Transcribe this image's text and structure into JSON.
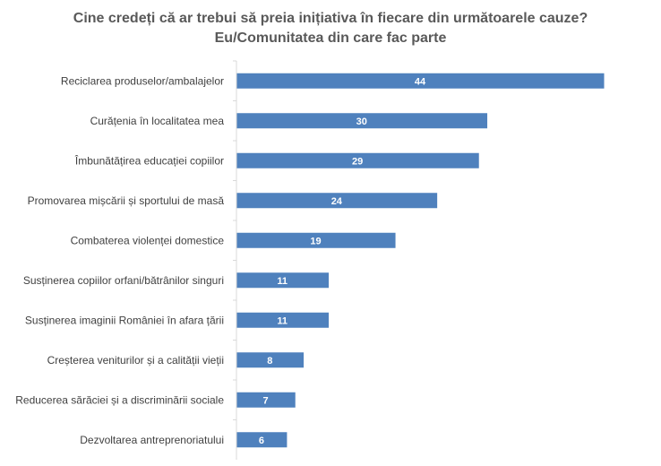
{
  "chart_data": {
    "type": "bar",
    "orientation": "horizontal",
    "title": "Cine credeți că ar trebui să preia inițiativa în fiecare din următoarele cauze?",
    "subtitle": "Eu/Comunitatea din care fac parte",
    "categories": [
      "Reciclarea produselor/ambalajelor",
      "Curățenia în localitatea mea",
      "Îmbunătățirea educației copiilor",
      "Promovarea mișcării și sportului de masă",
      "Combaterea violenței domestice",
      "Susținerea copiilor orfani/bătrânilor singuri",
      "Susținerea imaginii României în afara țării",
      "Creșterea veniturilor și a calității vieții",
      "Reducerea sărăciei și a discriminării sociale",
      "Dezvoltarea antreprenoriatului"
    ],
    "values": [
      44,
      30,
      29,
      24,
      19,
      11,
      11,
      8,
      7,
      6
    ],
    "xlabel": "",
    "ylabel": "",
    "xlim": [
      0,
      50
    ],
    "grid": false,
    "data_labels": true,
    "bar_color": "#4F81BD",
    "label_color": "#FFFFFF"
  }
}
